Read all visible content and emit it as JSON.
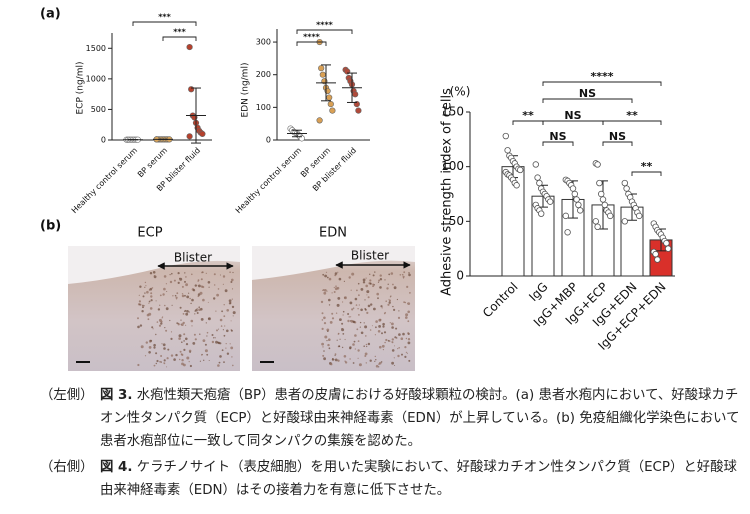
{
  "panel_labels": [
    "(a)",
    "(b)"
  ],
  "chart_data": [
    {
      "type": "dot",
      "y_label": "ECP (ng/ml)",
      "categories": [
        "Healthy control serum",
        "BP serum",
        "BP blister fluid"
      ],
      "colors": [
        "#ffffff",
        "#d9a55b",
        "#b5412d"
      ],
      "points": [
        [
          5,
          5,
          5,
          5,
          5,
          5,
          5,
          5
        ],
        [
          10,
          10,
          10,
          10,
          10,
          10,
          10,
          10,
          10,
          10
        ],
        [
          1520,
          830,
          400,
          370,
          280,
          200,
          150,
          120,
          100,
          60
        ]
      ],
      "mean": [
        5,
        10,
        400
      ],
      "sd": [
        0,
        0,
        450
      ],
      "ylim": [
        0,
        1750
      ],
      "yticks": [
        0,
        500,
        1000,
        1500
      ],
      "annotations": [
        {
          "text": "***",
          "between": [
            "Healthy control serum",
            "BP blister fluid"
          ]
        },
        {
          "text": "***",
          "between": [
            "BP serum",
            "BP blister fluid"
          ]
        }
      ]
    },
    {
      "type": "dot",
      "y_label": "EDN (ng/ml)",
      "categories": [
        "Healthy control serum",
        "BP serum",
        "BP blister fluid"
      ],
      "colors": [
        "#ffffff",
        "#d9a055",
        "#b04a3a"
      ],
      "points": [
        [
          35,
          30,
          25,
          22,
          20,
          15,
          10,
          5
        ],
        [
          300,
          220,
          200,
          180,
          160,
          150,
          130,
          110,
          90,
          60
        ],
        [
          215,
          210,
          190,
          180,
          170,
          150,
          140,
          110,
          90
        ]
      ],
      "mean": [
        20,
        175,
        160
      ],
      "sd": [
        10,
        55,
        45
      ],
      "ylim": [
        0,
        340
      ],
      "yticks": [
        0,
        100,
        200,
        300
      ],
      "annotations": [
        {
          "text": "****",
          "between": [
            "Healthy control serum",
            "BP blister fluid"
          ]
        },
        {
          "text": "****",
          "between": [
            "Healthy control serum",
            "BP serum"
          ]
        }
      ]
    },
    {
      "type": "bar",
      "y_label": "Adhesive strength index of cells",
      "unit_label": "(%)",
      "categories": [
        "Control",
        "IgG",
        "IgG+MBP",
        "IgG+ECP",
        "IgG+EDN",
        "IgG+ECP+EDN"
      ],
      "values": [
        100,
        73,
        70,
        65,
        63,
        33
      ],
      "errors": [
        10,
        10,
        17,
        22,
        12,
        10
      ],
      "colors": [
        "#ffffff",
        "#ffffff",
        "#ffffff",
        "#ffffff",
        "#ffffff",
        "#d9302a"
      ],
      "points": [
        [
          128,
          115,
          110,
          108,
          105,
          103,
          100,
          98,
          97,
          95,
          93,
          92,
          90,
          88,
          85,
          83
        ],
        [
          102,
          90,
          85,
          80,
          77,
          75,
          73,
          70,
          68,
          65,
          62,
          60,
          57
        ],
        [
          88,
          87,
          85,
          83,
          80,
          75,
          70,
          65,
          60,
          55,
          40
        ],
        [
          103,
          102,
          85,
          75,
          70,
          65,
          60,
          58,
          55,
          50,
          45
        ],
        [
          85,
          80,
          75,
          72,
          68,
          65,
          62,
          58,
          55,
          50
        ],
        [
          48,
          45,
          42,
          40,
          38,
          35,
          32,
          30,
          25,
          22,
          20,
          15
        ]
      ],
      "ylim": [
        0,
        150
      ],
      "yticks": [
        0,
        50,
        100,
        150
      ],
      "annotations": [
        {
          "text": "****",
          "between": [
            "IgG",
            "IgG+ECP+EDN"
          ]
        },
        {
          "text": "NS",
          "between": [
            "IgG",
            "IgG+EDN"
          ]
        },
        {
          "text": "**",
          "between": [
            "Control",
            "IgG"
          ]
        },
        {
          "text": "NS",
          "between": [
            "IgG",
            "IgG+ECP"
          ]
        },
        {
          "text": "**",
          "between": [
            "IgG+ECP",
            "IgG+ECP+EDN"
          ]
        },
        {
          "text": "NS",
          "between": [
            "IgG",
            "IgG+MBP"
          ]
        },
        {
          "text": "NS",
          "between": [
            "IgG+ECP",
            "IgG+EDN"
          ]
        },
        {
          "text": "**",
          "between": [
            "IgG+EDN",
            "IgG+ECP+EDN"
          ]
        }
      ]
    }
  ],
  "histology": [
    {
      "title": "ECP",
      "region": "Blister"
    },
    {
      "title": "EDN",
      "region": "Blister"
    }
  ],
  "caption": [
    {
      "label": "（左側）",
      "figure": "図 3.",
      "text": "水疱性類天疱瘡（BP）患者の皮膚における好酸球顆粒の検討。(a) 患者水疱内において、好酸球カチオン性タンパク質（ECP）と好酸球由来神経毒素（EDN）が上昇している。(b) 免疫組織化学染色において患者水疱部位に一致して同タンパクの集簇を認めた。"
    },
    {
      "label": "（右側）",
      "figure": "図 4.",
      "text": "ケラチノサイト（表皮細胞）を用いた実験において、好酸球カチオン性タンパク質（ECP）と好酸球由来神経毒素（EDN）はその接着力を有意に低下させた。"
    }
  ]
}
